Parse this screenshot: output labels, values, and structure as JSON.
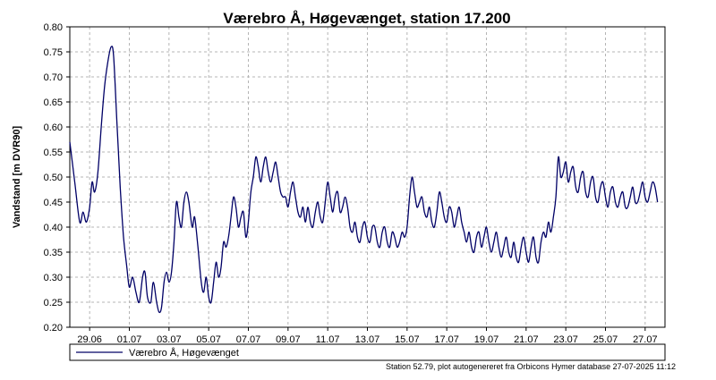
{
  "chart_data": {
    "type": "line",
    "title": "Værebro Å, Høgevænget, station 17.200",
    "ylabel": "Vandstand [m DVR90]",
    "xlabel": "",
    "ylim": [
      0.2,
      0.8
    ],
    "yticks": [
      "0.20",
      "0.25",
      "0.30",
      "0.35",
      "0.40",
      "0.45",
      "0.50",
      "0.55",
      "0.60",
      "0.65",
      "0.70",
      "0.75",
      "0.80"
    ],
    "xlim": [
      "2025-06-28 00:00",
      "2025-07-28 00:00"
    ],
    "xticks": [
      {
        "date": "2025-06-29",
        "label": "29.06"
      },
      {
        "date": "2025-07-01",
        "label": "01.07"
      },
      {
        "date": "2025-07-03",
        "label": "03.07"
      },
      {
        "date": "2025-07-05",
        "label": "05.07"
      },
      {
        "date": "2025-07-07",
        "label": "07.07"
      },
      {
        "date": "2025-07-09",
        "label": "09.07"
      },
      {
        "date": "2025-07-11",
        "label": "11.07"
      },
      {
        "date": "2025-07-13",
        "label": "13.07"
      },
      {
        "date": "2025-07-15",
        "label": "15.07"
      },
      {
        "date": "2025-07-17",
        "label": "17.07"
      },
      {
        "date": "2025-07-19",
        "label": "19.07"
      },
      {
        "date": "2025-07-21",
        "label": "21.07"
      },
      {
        "date": "2025-07-23",
        "label": "23.07"
      },
      {
        "date": "2025-07-25",
        "label": "25.07"
      },
      {
        "date": "2025-07-27",
        "label": "27.07"
      }
    ],
    "grid": true,
    "legend_position": "bottom",
    "series": [
      {
        "name": "Værebro Å, Høgevænget",
        "color": "#000066",
        "points": [
          [
            "2025-06-28 00:00",
            0.57
          ],
          [
            "2025-06-28 06:00",
            0.49
          ],
          [
            "2025-06-28 12:00",
            0.41
          ],
          [
            "2025-06-28 16:00",
            0.43
          ],
          [
            "2025-06-28 20:00",
            0.41
          ],
          [
            "2025-06-29 00:00",
            0.44
          ],
          [
            "2025-06-29 03:00",
            0.49
          ],
          [
            "2025-06-29 06:00",
            0.47
          ],
          [
            "2025-06-29 10:00",
            0.51
          ],
          [
            "2025-06-29 14:00",
            0.6
          ],
          [
            "2025-06-29 18:00",
            0.68
          ],
          [
            "2025-06-29 22:00",
            0.73
          ],
          [
            "2025-06-30 02:00",
            0.76
          ],
          [
            "2025-06-30 05:00",
            0.74
          ],
          [
            "2025-06-30 09:00",
            0.61
          ],
          [
            "2025-06-30 13:00",
            0.48
          ],
          [
            "2025-06-30 17:00",
            0.38
          ],
          [
            "2025-06-30 21:00",
            0.32
          ],
          [
            "2025-07-01 00:00",
            0.28
          ],
          [
            "2025-07-01 04:00",
            0.3
          ],
          [
            "2025-07-01 08:00",
            0.27
          ],
          [
            "2025-07-01 12:00",
            0.25
          ],
          [
            "2025-07-01 16:00",
            0.3
          ],
          [
            "2025-07-01 19:00",
            0.31
          ],
          [
            "2025-07-01 22:00",
            0.26
          ],
          [
            "2025-07-02 02:00",
            0.25
          ],
          [
            "2025-07-02 05:00",
            0.29
          ],
          [
            "2025-07-02 09:00",
            0.25
          ],
          [
            "2025-07-02 12:00",
            0.23
          ],
          [
            "2025-07-02 15:00",
            0.24
          ],
          [
            "2025-07-02 18:00",
            0.29
          ],
          [
            "2025-07-02 21:00",
            0.31
          ],
          [
            "2025-07-03 00:00",
            0.29
          ],
          [
            "2025-07-03 03:00",
            0.31
          ],
          [
            "2025-07-03 06:00",
            0.37
          ],
          [
            "2025-07-03 09:00",
            0.45
          ],
          [
            "2025-07-03 12:00",
            0.42
          ],
          [
            "2025-07-03 15:00",
            0.4
          ],
          [
            "2025-07-03 18:00",
            0.45
          ],
          [
            "2025-07-03 21:00",
            0.47
          ],
          [
            "2025-07-04 00:00",
            0.45
          ],
          [
            "2025-07-04 04:00",
            0.4
          ],
          [
            "2025-07-04 07:00",
            0.42
          ],
          [
            "2025-07-04 11:00",
            0.36
          ],
          [
            "2025-07-04 15:00",
            0.29
          ],
          [
            "2025-07-04 18:00",
            0.27
          ],
          [
            "2025-07-04 21:00",
            0.3
          ],
          [
            "2025-07-05 00:00",
            0.26
          ],
          [
            "2025-07-05 03:00",
            0.25
          ],
          [
            "2025-07-05 06:00",
            0.29
          ],
          [
            "2025-07-05 09:00",
            0.33
          ],
          [
            "2025-07-05 12:00",
            0.3
          ],
          [
            "2025-07-05 15:00",
            0.32
          ],
          [
            "2025-07-05 18:00",
            0.37
          ],
          [
            "2025-07-05 21:00",
            0.36
          ],
          [
            "2025-07-06 00:00",
            0.38
          ],
          [
            "2025-07-06 03:00",
            0.42
          ],
          [
            "2025-07-06 06:00",
            0.46
          ],
          [
            "2025-07-06 09:00",
            0.44
          ],
          [
            "2025-07-06 12:00",
            0.4
          ],
          [
            "2025-07-06 15:00",
            0.42
          ],
          [
            "2025-07-06 18:00",
            0.43
          ],
          [
            "2025-07-06 21:00",
            0.38
          ],
          [
            "2025-07-07 00:00",
            0.41
          ],
          [
            "2025-07-07 03:00",
            0.47
          ],
          [
            "2025-07-07 06:00",
            0.5
          ],
          [
            "2025-07-07 09:00",
            0.54
          ],
          [
            "2025-07-07 12:00",
            0.52
          ],
          [
            "2025-07-07 15:00",
            0.49
          ],
          [
            "2025-07-07 18:00",
            0.52
          ],
          [
            "2025-07-07 21:00",
            0.54
          ],
          [
            "2025-07-08 00:00",
            0.51
          ],
          [
            "2025-07-08 03:00",
            0.49
          ],
          [
            "2025-07-08 06:00",
            0.51
          ],
          [
            "2025-07-08 09:00",
            0.53
          ],
          [
            "2025-07-08 12:00",
            0.5
          ],
          [
            "2025-07-08 15:00",
            0.47
          ],
          [
            "2025-07-08 18:00",
            0.46
          ],
          [
            "2025-07-08 21:00",
            0.46
          ],
          [
            "2025-07-09 00:00",
            0.44
          ],
          [
            "2025-07-09 03:00",
            0.47
          ],
          [
            "2025-07-09 06:00",
            0.49
          ],
          [
            "2025-07-09 09:00",
            0.46
          ],
          [
            "2025-07-09 12:00",
            0.43
          ],
          [
            "2025-07-09 15:00",
            0.42
          ],
          [
            "2025-07-09 18:00",
            0.44
          ],
          [
            "2025-07-09 21:00",
            0.41
          ],
          [
            "2025-07-10 00:00",
            0.44
          ],
          [
            "2025-07-10 03:00",
            0.41
          ],
          [
            "2025-07-10 06:00",
            0.4
          ],
          [
            "2025-07-10 09:00",
            0.43
          ],
          [
            "2025-07-10 12:00",
            0.45
          ],
          [
            "2025-07-10 15:00",
            0.42
          ],
          [
            "2025-07-10 18:00",
            0.41
          ],
          [
            "2025-07-10 21:00",
            0.45
          ],
          [
            "2025-07-11 00:00",
            0.49
          ],
          [
            "2025-07-11 03:00",
            0.46
          ],
          [
            "2025-07-11 06:00",
            0.43
          ],
          [
            "2025-07-11 09:00",
            0.46
          ],
          [
            "2025-07-11 12:00",
            0.47
          ],
          [
            "2025-07-11 15:00",
            0.43
          ],
          [
            "2025-07-11 18:00",
            0.44
          ],
          [
            "2025-07-11 21:00",
            0.46
          ],
          [
            "2025-07-12 00:00",
            0.44
          ],
          [
            "2025-07-12 03:00",
            0.4
          ],
          [
            "2025-07-12 06:00",
            0.39
          ],
          [
            "2025-07-12 09:00",
            0.41
          ],
          [
            "2025-07-12 12:00",
            0.38
          ],
          [
            "2025-07-12 15:00",
            0.37
          ],
          [
            "2025-07-12 18:00",
            0.4
          ],
          [
            "2025-07-12 21:00",
            0.41
          ],
          [
            "2025-07-13 00:00",
            0.38
          ],
          [
            "2025-07-13 03:00",
            0.37
          ],
          [
            "2025-07-13 06:00",
            0.4
          ],
          [
            "2025-07-13 09:00",
            0.4
          ],
          [
            "2025-07-13 12:00",
            0.37
          ],
          [
            "2025-07-13 15:00",
            0.36
          ],
          [
            "2025-07-13 18:00",
            0.39
          ],
          [
            "2025-07-13 21:00",
            0.4
          ],
          [
            "2025-07-14 00:00",
            0.37
          ],
          [
            "2025-07-14 03:00",
            0.36
          ],
          [
            "2025-07-14 06:00",
            0.39
          ],
          [
            "2025-07-14 09:00",
            0.38
          ],
          [
            "2025-07-14 12:00",
            0.36
          ],
          [
            "2025-07-14 15:00",
            0.37
          ],
          [
            "2025-07-14 18:00",
            0.39
          ],
          [
            "2025-07-14 21:00",
            0.38
          ],
          [
            "2025-07-15 00:00",
            0.4
          ],
          [
            "2025-07-15 03:00",
            0.46
          ],
          [
            "2025-07-15 06:00",
            0.5
          ],
          [
            "2025-07-15 09:00",
            0.47
          ],
          [
            "2025-07-15 12:00",
            0.44
          ],
          [
            "2025-07-15 15:00",
            0.45
          ],
          [
            "2025-07-15 18:00",
            0.46
          ],
          [
            "2025-07-15 21:00",
            0.43
          ],
          [
            "2025-07-16 00:00",
            0.42
          ],
          [
            "2025-07-16 03:00",
            0.44
          ],
          [
            "2025-07-16 06:00",
            0.41
          ],
          [
            "2025-07-16 09:00",
            0.4
          ],
          [
            "2025-07-16 12:00",
            0.43
          ],
          [
            "2025-07-16 15:00",
            0.47
          ],
          [
            "2025-07-16 18:00",
            0.45
          ],
          [
            "2025-07-16 21:00",
            0.42
          ],
          [
            "2025-07-17 00:00",
            0.41
          ],
          [
            "2025-07-17 03:00",
            0.44
          ],
          [
            "2025-07-17 06:00",
            0.43
          ],
          [
            "2025-07-17 09:00",
            0.4
          ],
          [
            "2025-07-17 12:00",
            0.42
          ],
          [
            "2025-07-17 15:00",
            0.44
          ],
          [
            "2025-07-17 18:00",
            0.41
          ],
          [
            "2025-07-17 21:00",
            0.39
          ],
          [
            "2025-07-18 00:00",
            0.37
          ],
          [
            "2025-07-18 03:00",
            0.39
          ],
          [
            "2025-07-18 06:00",
            0.36
          ],
          [
            "2025-07-18 09:00",
            0.35
          ],
          [
            "2025-07-18 12:00",
            0.38
          ],
          [
            "2025-07-18 15:00",
            0.39
          ],
          [
            "2025-07-18 18:00",
            0.36
          ],
          [
            "2025-07-18 21:00",
            0.38
          ],
          [
            "2025-07-19 00:00",
            0.4
          ],
          [
            "2025-07-19 03:00",
            0.37
          ],
          [
            "2025-07-19 06:00",
            0.35
          ],
          [
            "2025-07-19 09:00",
            0.37
          ],
          [
            "2025-07-19 12:00",
            0.39
          ],
          [
            "2025-07-19 15:00",
            0.36
          ],
          [
            "2025-07-19 18:00",
            0.34
          ],
          [
            "2025-07-19 21:00",
            0.36
          ],
          [
            "2025-07-20 00:00",
            0.38
          ],
          [
            "2025-07-20 03:00",
            0.35
          ],
          [
            "2025-07-20 06:00",
            0.34
          ],
          [
            "2025-07-20 09:00",
            0.37
          ],
          [
            "2025-07-20 12:00",
            0.34
          ],
          [
            "2025-07-20 15:00",
            0.33
          ],
          [
            "2025-07-20 18:00",
            0.36
          ],
          [
            "2025-07-20 21:00",
            0.38
          ],
          [
            "2025-07-21 00:00",
            0.35
          ],
          [
            "2025-07-21 03:00",
            0.33
          ],
          [
            "2025-07-21 06:00",
            0.36
          ],
          [
            "2025-07-21 09:00",
            0.38
          ],
          [
            "2025-07-21 12:00",
            0.34
          ],
          [
            "2025-07-21 15:00",
            0.33
          ],
          [
            "2025-07-21 18:00",
            0.37
          ],
          [
            "2025-07-21 21:00",
            0.39
          ],
          [
            "2025-07-22 00:00",
            0.38
          ],
          [
            "2025-07-22 03:00",
            0.41
          ],
          [
            "2025-07-22 06:00",
            0.39
          ],
          [
            "2025-07-22 09:00",
            0.42
          ],
          [
            "2025-07-22 12:00",
            0.46
          ],
          [
            "2025-07-22 15:00",
            0.54
          ],
          [
            "2025-07-22 18:00",
            0.5
          ],
          [
            "2025-07-22 21:00",
            0.51
          ],
          [
            "2025-07-23 00:00",
            0.53
          ],
          [
            "2025-07-23 03:00",
            0.49
          ],
          [
            "2025-07-23 06:00",
            0.51
          ],
          [
            "2025-07-23 09:00",
            0.52
          ],
          [
            "2025-07-23 12:00",
            0.48
          ],
          [
            "2025-07-23 15:00",
            0.47
          ],
          [
            "2025-07-23 18:00",
            0.5
          ],
          [
            "2025-07-23 21:00",
            0.51
          ],
          [
            "2025-07-24 00:00",
            0.47
          ],
          [
            "2025-07-24 03:00",
            0.46
          ],
          [
            "2025-07-24 06:00",
            0.49
          ],
          [
            "2025-07-24 09:00",
            0.5
          ],
          [
            "2025-07-24 12:00",
            0.46
          ],
          [
            "2025-07-24 15:00",
            0.45
          ],
          [
            "2025-07-24 18:00",
            0.48
          ],
          [
            "2025-07-24 21:00",
            0.49
          ],
          [
            "2025-07-25 00:00",
            0.46
          ],
          [
            "2025-07-25 03:00",
            0.44
          ],
          [
            "2025-07-25 06:00",
            0.47
          ],
          [
            "2025-07-25 09:00",
            0.48
          ],
          [
            "2025-07-25 12:00",
            0.45
          ],
          [
            "2025-07-25 15:00",
            0.44
          ],
          [
            "2025-07-25 18:00",
            0.46
          ],
          [
            "2025-07-25 21:00",
            0.47
          ],
          [
            "2025-07-26 00:00",
            0.44
          ],
          [
            "2025-07-26 03:00",
            0.44
          ],
          [
            "2025-07-26 06:00",
            0.46
          ],
          [
            "2025-07-26 09:00",
            0.48
          ],
          [
            "2025-07-26 12:00",
            0.45
          ],
          [
            "2025-07-26 15:00",
            0.45
          ],
          [
            "2025-07-26 18:00",
            0.47
          ],
          [
            "2025-07-26 21:00",
            0.49
          ],
          [
            "2025-07-27 00:00",
            0.46
          ],
          [
            "2025-07-27 03:00",
            0.45
          ],
          [
            "2025-07-27 06:00",
            0.47
          ],
          [
            "2025-07-27 09:00",
            0.49
          ],
          [
            "2025-07-27 12:00",
            0.48
          ],
          [
            "2025-07-27 15:00",
            0.45
          ]
        ]
      }
    ],
    "footer": "Station 52.79, plot autogenereret fra Orbicons Hymer database 27-07-2025 11:12"
  }
}
